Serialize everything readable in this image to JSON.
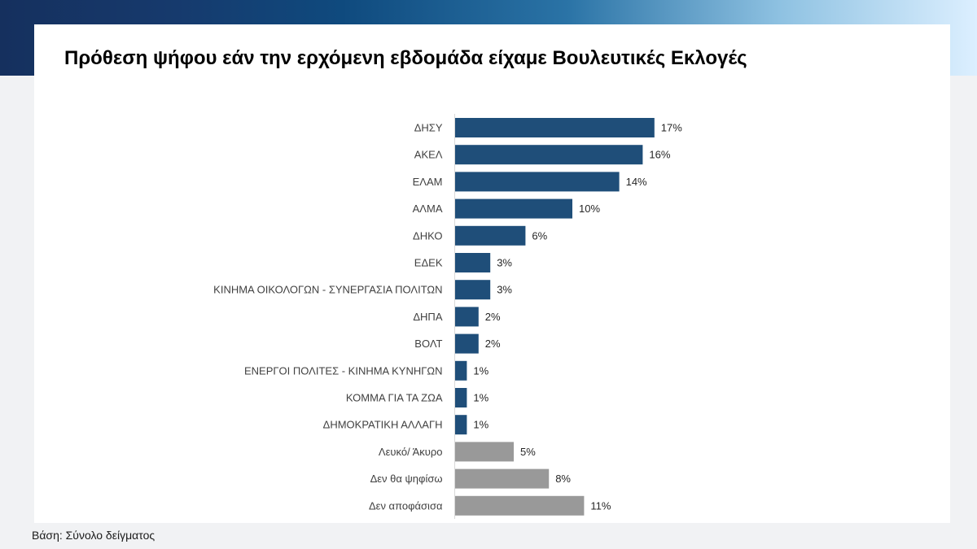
{
  "title": "Πρόθεση ψήφου εάν την ερχόμενη εβδομάδα είχαμε Βουλευτικές Εκλογές",
  "footnote": "Βάση: Σύνολο δείγματος",
  "colors": {
    "party_bar": "#1f4e79",
    "other_bar": "#999999",
    "banner_dark": "#15305e",
    "banner_light": "#dcefff"
  },
  "chart_data": {
    "type": "bar",
    "orientation": "horizontal",
    "value_suffix": "%",
    "xlim": [
      0,
      20
    ],
    "grid": false,
    "categories": [
      "ΔΗΣΥ",
      "ΑΚΕΛ",
      "ΕΛΑΜ",
      "ΑΛΜΑ",
      "ΔΗΚΟ",
      "ΕΔΕΚ",
      "ΚΙΝΗΜΑ ΟΙΚΟΛΟΓΩΝ - ΣΥΝΕΡΓΑΣΙΑ ΠΟΛΙΤΩΝ",
      "ΔΗΠΑ",
      "ΒΟΛΤ",
      "ΕΝΕΡΓΟΙ ΠΟΛΙΤΕΣ - ΚΙΝΗΜΑ ΚΥΝΗΓΩΝ",
      "ΚΟΜΜΑ ΓΙΑ ΤΑ ΖΩΑ",
      "ΔΗΜΟΚΡΑΤΙΚΗ ΑΛΛΑΓΗ",
      "Λευκό/ Άκυρο",
      "Δεν θα ψηφίσω",
      "Δεν αποφάσισα"
    ],
    "values": [
      17,
      16,
      14,
      10,
      6,
      3,
      3,
      2,
      2,
      1,
      1,
      1,
      5,
      8,
      11
    ],
    "value_labels": [
      "17%",
      "16%",
      "14%",
      "10%",
      "6%",
      "3%",
      "3%",
      "2%",
      "2%",
      "1%",
      "1%",
      "1%",
      "5%",
      "8%",
      "11%"
    ],
    "bar_groups": [
      "party",
      "party",
      "party",
      "party",
      "party",
      "party",
      "party",
      "party",
      "party",
      "party",
      "party",
      "party",
      "other",
      "other",
      "other"
    ]
  }
}
